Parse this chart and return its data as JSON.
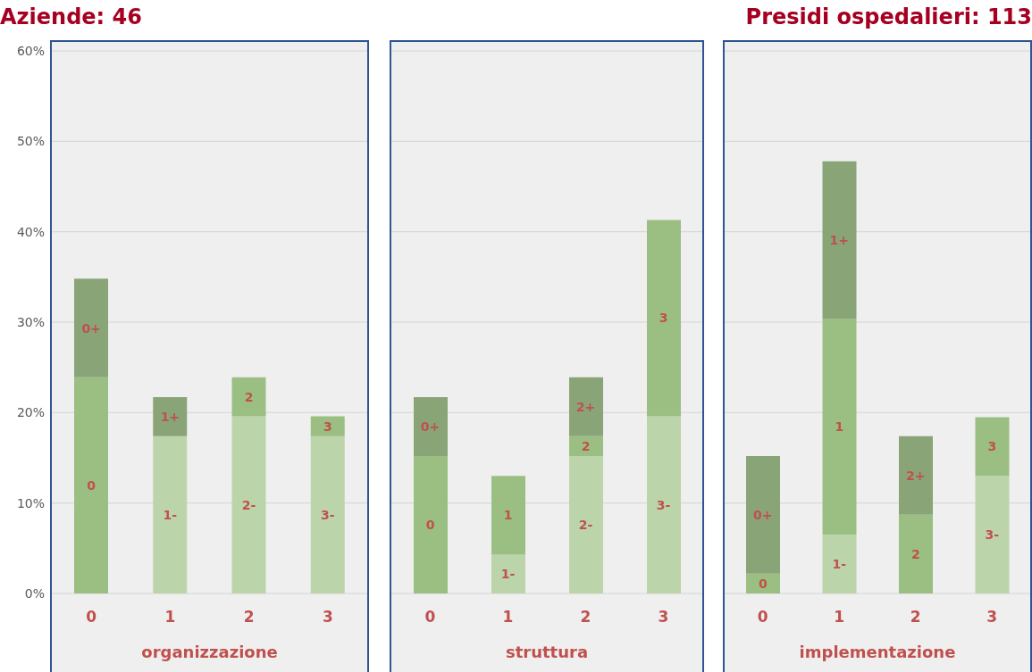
{
  "chart_data": [
    {
      "type": "bar",
      "title": "Aziende: 46",
      "xlabel": "organizzazione",
      "categories": [
        "0",
        "1",
        "2",
        "3"
      ],
      "stacked": true,
      "grid": "y",
      "ylim": [
        0,
        60
      ],
      "yticks": [
        {
          "value": 0,
          "label": "0%"
        },
        {
          "value": 10,
          "label": "10%"
        },
        {
          "value": 20,
          "label": "20%"
        },
        {
          "value": 30,
          "label": "30%"
        },
        {
          "value": 40,
          "label": "40%"
        },
        {
          "value": 50,
          "label": "50%"
        },
        {
          "value": 60,
          "label": "60%"
        }
      ],
      "series": [
        {
          "color": "#bcd4aa",
          "values": [
            null,
            17.4,
            19.6,
            17.4
          ]
        },
        {
          "color": "#9bbf82",
          "values": [
            23.9,
            null,
            4.3,
            2.2
          ]
        },
        {
          "color": "#89a578",
          "values": [
            10.9,
            4.3,
            null,
            null
          ]
        }
      ],
      "annotations": [
        "0",
        "0+",
        "1-",
        "1+",
        "2-",
        "2",
        "3-",
        "3"
      ]
    },
    {
      "type": "bar",
      "xlabel": "struttura",
      "categories": [
        "0",
        "1",
        "2",
        "3"
      ],
      "stacked": true,
      "grid": "y",
      "tick_labels": "x",
      "ylim": [
        0,
        60
      ],
      "yticks": [
        0,
        10,
        20,
        30,
        40,
        50,
        60
      ],
      "series": [
        {
          "color": "#bcd4aa",
          "values": [
            null,
            4.3,
            15.2,
            19.6
          ]
        },
        {
          "color": "#9bbf82",
          "values": [
            15.2,
            8.7,
            2.2,
            21.7
          ]
        },
        {
          "color": "#89a578",
          "values": [
            6.5,
            null,
            6.5,
            null
          ]
        }
      ],
      "annotations": [
        "0",
        "0+",
        "1-",
        "1",
        "2-",
        "2",
        "2+",
        "3-",
        "3"
      ]
    },
    {
      "type": "bar",
      "title": "Presidi ospedalieri: 113",
      "xlabel": "implementazione",
      "categories": [
        "0",
        "1",
        "2",
        "3"
      ],
      "stacked": true,
      "grid": "y",
      "tick_labels": "x",
      "ylim": [
        0,
        60
      ],
      "yticks": [
        0,
        10,
        20,
        30,
        40,
        50,
        60
      ],
      "series": [
        {
          "color": "#bcd4aa",
          "values": [
            null,
            6.5,
            null,
            13.0
          ]
        },
        {
          "color": "#9bbf82",
          "values": [
            2.2,
            23.9,
            8.7,
            6.5
          ]
        },
        {
          "color": "#89a578",
          "values": [
            13.0,
            17.4,
            8.7,
            null
          ]
        }
      ],
      "annotations": [
        "0",
        "0+",
        "1-",
        "1",
        "1+",
        "2",
        "2+",
        "3-",
        "3"
      ]
    }
  ]
}
